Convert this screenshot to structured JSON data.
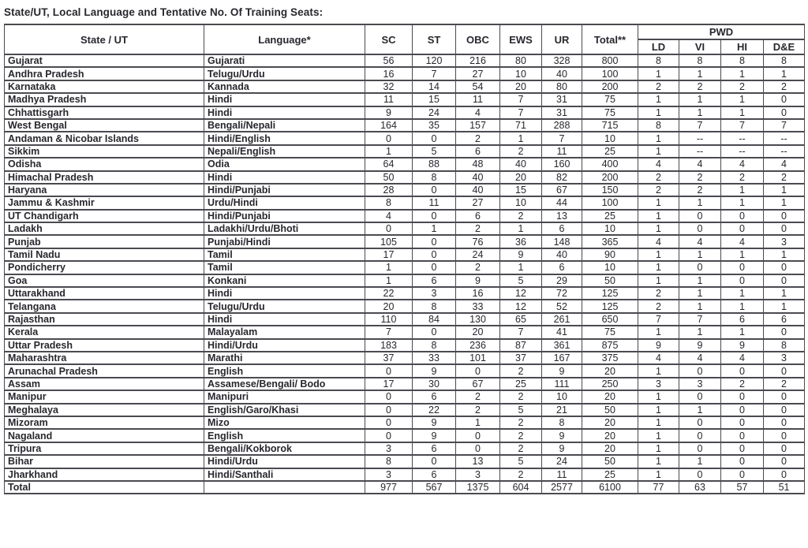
{
  "title": "State/UT, Local Language and Tentative No. Of Training Seats:",
  "colors": {
    "ink": "#28272e",
    "border": "#4b4a50",
    "background": "#ffffff"
  },
  "table": {
    "header": {
      "state": "State / UT",
      "language": "Language*",
      "cols": [
        "SC",
        "ST",
        "OBC",
        "EWS",
        "UR",
        "Total**"
      ],
      "pwd_label": "PWD",
      "pwd_cols": [
        "LD",
        "VI",
        "HI",
        "D&E"
      ]
    },
    "rows": [
      {
        "state": "Gujarat",
        "language": "Gujarati",
        "values": [
          "56",
          "120",
          "216",
          "80",
          "328",
          "800",
          "8",
          "8",
          "8",
          "8"
        ]
      },
      {
        "state": "Andhra Pradesh",
        "language": "Telugu/Urdu",
        "values": [
          "16",
          "7",
          "27",
          "10",
          "40",
          "100",
          "1",
          "1",
          "1",
          "1"
        ]
      },
      {
        "state": "Karnataka",
        "language": "Kannada",
        "values": [
          "32",
          "14",
          "54",
          "20",
          "80",
          "200",
          "2",
          "2",
          "2",
          "2"
        ]
      },
      {
        "state": "Madhya Pradesh",
        "language": "Hindi",
        "values": [
          "11",
          "15",
          "11",
          "7",
          "31",
          "75",
          "1",
          "1",
          "1",
          "0"
        ]
      },
      {
        "state": "Chhattisgarh",
        "language": "Hindi",
        "values": [
          "9",
          "24",
          "4",
          "7",
          "31",
          "75",
          "1",
          "1",
          "1",
          "0"
        ]
      },
      {
        "state": "West Bengal",
        "language": "Bengali/Nepali",
        "values": [
          "164",
          "35",
          "157",
          "71",
          "288",
          "715",
          "8",
          "7",
          "7",
          "7"
        ]
      },
      {
        "state": "Andaman & Nicobar Islands",
        "language": "Hindi/English",
        "values": [
          "0",
          "0",
          "2",
          "1",
          "7",
          "10",
          "1",
          "--",
          "--",
          "--"
        ]
      },
      {
        "state": "Sikkim",
        "language": "Nepali/English",
        "values": [
          "1",
          "5",
          "6",
          "2",
          "11",
          "25",
          "1",
          "--",
          "--",
          "--"
        ]
      },
      {
        "state": "Odisha",
        "language": "Odia",
        "values": [
          "64",
          "88",
          "48",
          "40",
          "160",
          "400",
          "4",
          "4",
          "4",
          "4"
        ]
      },
      {
        "state": "Himachal Pradesh",
        "language": "Hindi",
        "values": [
          "50",
          "8",
          "40",
          "20",
          "82",
          "200",
          "2",
          "2",
          "2",
          "2"
        ]
      },
      {
        "state": "Haryana",
        "language": "Hindi/Punjabi",
        "values": [
          "28",
          "0",
          "40",
          "15",
          "67",
          "150",
          "2",
          "2",
          "1",
          "1"
        ]
      },
      {
        "state": "Jammu & Kashmir",
        "language": "Urdu/Hindi",
        "values": [
          "8",
          "11",
          "27",
          "10",
          "44",
          "100",
          "1",
          "1",
          "1",
          "1"
        ]
      },
      {
        "state": "UT Chandigarh",
        "language": "Hindi/Punjabi",
        "values": [
          "4",
          "0",
          "6",
          "2",
          "13",
          "25",
          "1",
          "0",
          "0",
          "0"
        ]
      },
      {
        "state": "Ladakh",
        "language": "Ladakhi/Urdu/Bhoti",
        "values": [
          "0",
          "1",
          "2",
          "1",
          "6",
          "10",
          "1",
          "0",
          "0",
          "0"
        ]
      },
      {
        "state": "Punjab",
        "language": "Punjabi/Hindi",
        "values": [
          "105",
          "0",
          "76",
          "36",
          "148",
          "365",
          "4",
          "4",
          "4",
          "3"
        ]
      },
      {
        "state": "Tamil Nadu",
        "language": "Tamil",
        "values": [
          "17",
          "0",
          "24",
          "9",
          "40",
          "90",
          "1",
          "1",
          "1",
          "1"
        ]
      },
      {
        "state": "Pondicherry",
        "language": "Tamil",
        "values": [
          "1",
          "0",
          "2",
          "1",
          "6",
          "10",
          "1",
          "0",
          "0",
          "0"
        ]
      },
      {
        "state": "Goa",
        "language": "Konkani",
        "values": [
          "1",
          "6",
          "9",
          "5",
          "29",
          "50",
          "1",
          "1",
          "0",
          "0"
        ]
      },
      {
        "state": "Uttarakhand",
        "language": "Hindi",
        "values": [
          "22",
          "3",
          "16",
          "12",
          "72",
          "125",
          "2",
          "1",
          "1",
          "1"
        ]
      },
      {
        "state": "Telangana",
        "language": "Telugu/Urdu",
        "values": [
          "20",
          "8",
          "33",
          "12",
          "52",
          "125",
          "2",
          "1",
          "1",
          "1"
        ]
      },
      {
        "state": "Rajasthan",
        "language": "Hindi",
        "values": [
          "110",
          "84",
          "130",
          "65",
          "261",
          "650",
          "7",
          "7",
          "6",
          "6"
        ]
      },
      {
        "state": "Kerala",
        "language": "Malayalam",
        "values": [
          "7",
          "0",
          "20",
          "7",
          "41",
          "75",
          "1",
          "1",
          "1",
          "0"
        ]
      },
      {
        "state": "Uttar Pradesh",
        "language": "Hindi/Urdu",
        "values": [
          "183",
          "8",
          "236",
          "87",
          "361",
          "875",
          "9",
          "9",
          "9",
          "8"
        ]
      },
      {
        "state": "Maharashtra",
        "language": "Marathi",
        "values": [
          "37",
          "33",
          "101",
          "37",
          "167",
          "375",
          "4",
          "4",
          "4",
          "3"
        ]
      },
      {
        "state": "Arunachal Pradesh",
        "language": "English",
        "values": [
          "0",
          "9",
          "0",
          "2",
          "9",
          "20",
          "1",
          "0",
          "0",
          "0"
        ]
      },
      {
        "state": "Assam",
        "language": "Assamese/Bengali/ Bodo",
        "values": [
          "17",
          "30",
          "67",
          "25",
          "111",
          "250",
          "3",
          "3",
          "2",
          "2"
        ]
      },
      {
        "state": "Manipur",
        "language": "Manipuri",
        "values": [
          "0",
          "6",
          "2",
          "2",
          "10",
          "20",
          "1",
          "0",
          "0",
          "0"
        ]
      },
      {
        "state": "Meghalaya",
        "language": "English/Garo/Khasi",
        "values": [
          "0",
          "22",
          "2",
          "5",
          "21",
          "50",
          "1",
          "1",
          "0",
          "0"
        ]
      },
      {
        "state": "Mizoram",
        "language": "Mizo",
        "values": [
          "0",
          "9",
          "1",
          "2",
          "8",
          "20",
          "1",
          "0",
          "0",
          "0"
        ]
      },
      {
        "state": "Nagaland",
        "language": "English",
        "values": [
          "0",
          "9",
          "0",
          "2",
          "9",
          "20",
          "1",
          "0",
          "0",
          "0"
        ]
      },
      {
        "state": "Tripura",
        "language": "Bengali/Kokborok",
        "values": [
          "3",
          "6",
          "0",
          "2",
          "9",
          "20",
          "1",
          "0",
          "0",
          "0"
        ]
      },
      {
        "state": "Bihar",
        "language": "Hindi/Urdu",
        "values": [
          "8",
          "0",
          "13",
          "5",
          "24",
          "50",
          "1",
          "1",
          "0",
          "0"
        ]
      },
      {
        "state": "Jharkhand",
        "language": "Hindi/Santhali",
        "values": [
          "3",
          "6",
          "3",
          "2",
          "11",
          "25",
          "1",
          "0",
          "0",
          "0"
        ]
      }
    ],
    "total": {
      "label": "Total",
      "language": "",
      "values": [
        "977",
        "567",
        "1375",
        "604",
        "2577",
        "6100",
        "77",
        "63",
        "57",
        "51"
      ]
    }
  }
}
